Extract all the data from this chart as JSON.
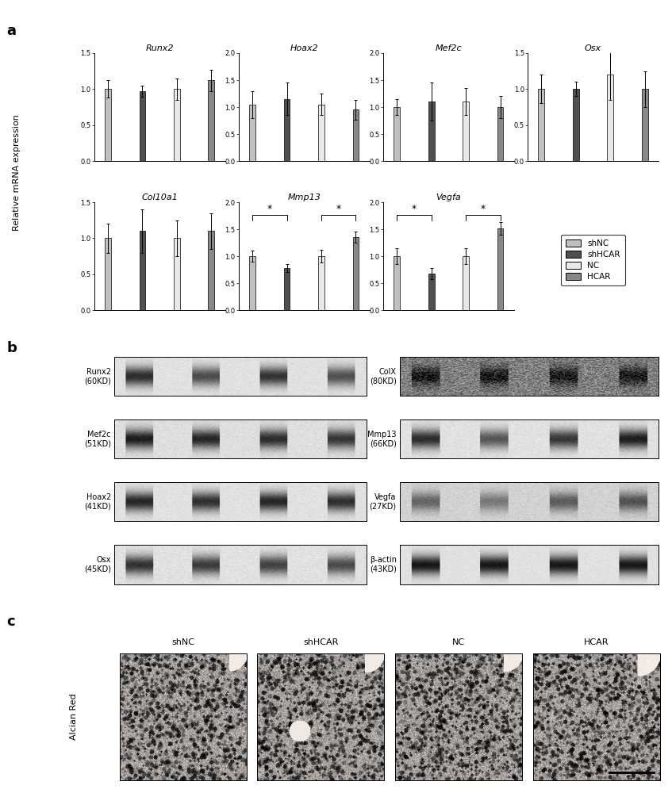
{
  "panel_a": {
    "subplots": [
      {
        "title": "Runx2",
        "ylim": [
          0.0,
          1.5
        ],
        "yticks": [
          0.0,
          0.5,
          1.0,
          1.5
        ],
        "values": [
          1.0,
          0.97,
          1.0,
          1.12
        ],
        "errors": [
          0.12,
          0.08,
          0.15,
          0.15
        ],
        "sig_pairs": []
      },
      {
        "title": "Hoax2",
        "ylim": [
          0.0,
          2.0
        ],
        "yticks": [
          0.0,
          0.5,
          1.0,
          1.5,
          2.0
        ],
        "values": [
          1.05,
          1.15,
          1.05,
          0.95
        ],
        "errors": [
          0.25,
          0.3,
          0.2,
          0.18
        ],
        "sig_pairs": []
      },
      {
        "title": "Mef2c",
        "ylim": [
          0.0,
          2.0
        ],
        "yticks": [
          0.0,
          0.5,
          1.0,
          1.5,
          2.0
        ],
        "values": [
          1.0,
          1.1,
          1.1,
          1.0
        ],
        "errors": [
          0.15,
          0.35,
          0.25,
          0.2
        ],
        "sig_pairs": []
      },
      {
        "title": "Osx",
        "ylim": [
          0.0,
          1.5
        ],
        "yticks": [
          0.0,
          0.5,
          1.0,
          1.5
        ],
        "values": [
          1.0,
          1.0,
          1.2,
          1.0
        ],
        "errors": [
          0.2,
          0.1,
          0.35,
          0.25
        ],
        "sig_pairs": []
      },
      {
        "title": "Col10a1",
        "ylim": [
          0.0,
          1.5
        ],
        "yticks": [
          0.0,
          0.5,
          1.0,
          1.5
        ],
        "values": [
          1.0,
          1.1,
          1.0,
          1.1
        ],
        "errors": [
          0.2,
          0.3,
          0.25,
          0.25
        ],
        "sig_pairs": []
      },
      {
        "title": "Mmp13",
        "ylim": [
          0.0,
          2.0
        ],
        "yticks": [
          0.0,
          0.5,
          1.0,
          1.5,
          2.0
        ],
        "values": [
          1.0,
          0.78,
          1.0,
          1.35
        ],
        "errors": [
          0.1,
          0.08,
          0.12,
          0.1
        ],
        "sig_pairs": [
          [
            0,
            1,
            "*"
          ],
          [
            2,
            3,
            "*"
          ]
        ]
      },
      {
        "title": "Vegfa",
        "ylim": [
          0.0,
          2.0
        ],
        "yticks": [
          0.0,
          0.5,
          1.0,
          1.5,
          2.0
        ],
        "values": [
          1.0,
          0.68,
          1.0,
          1.52
        ],
        "errors": [
          0.15,
          0.1,
          0.15,
          0.12
        ],
        "sig_pairs": [
          [
            0,
            1,
            "*"
          ],
          [
            2,
            3,
            "*"
          ]
        ]
      }
    ],
    "bar_colors": [
      "#c0c0c0",
      "#505050",
      "#e8e8e8",
      "#888888"
    ],
    "legend_labels": [
      "shNC",
      "shHCAR",
      "NC",
      "HCAR"
    ],
    "ylabel": "Relative mRNA expression"
  },
  "panel_b": {
    "left_labels": [
      [
        "Runx2",
        "(60KD)"
      ],
      [
        "Mef2c",
        "(51KD)"
      ],
      [
        "Hoax2",
        "(41KD)"
      ],
      [
        "Osx",
        "(45KD)"
      ]
    ],
    "right_labels": [
      [
        "ColX",
        "(80KD)"
      ],
      [
        "Mmp13",
        "(66KD)"
      ],
      [
        "Vegfa",
        "(27KD)"
      ],
      [
        "β-actin",
        "(43KD)"
      ]
    ]
  },
  "panel_c": {
    "labels": [
      "shNC",
      "shHCAR",
      "NC",
      "HCAR"
    ],
    "ylabel": "Alcian Red"
  }
}
